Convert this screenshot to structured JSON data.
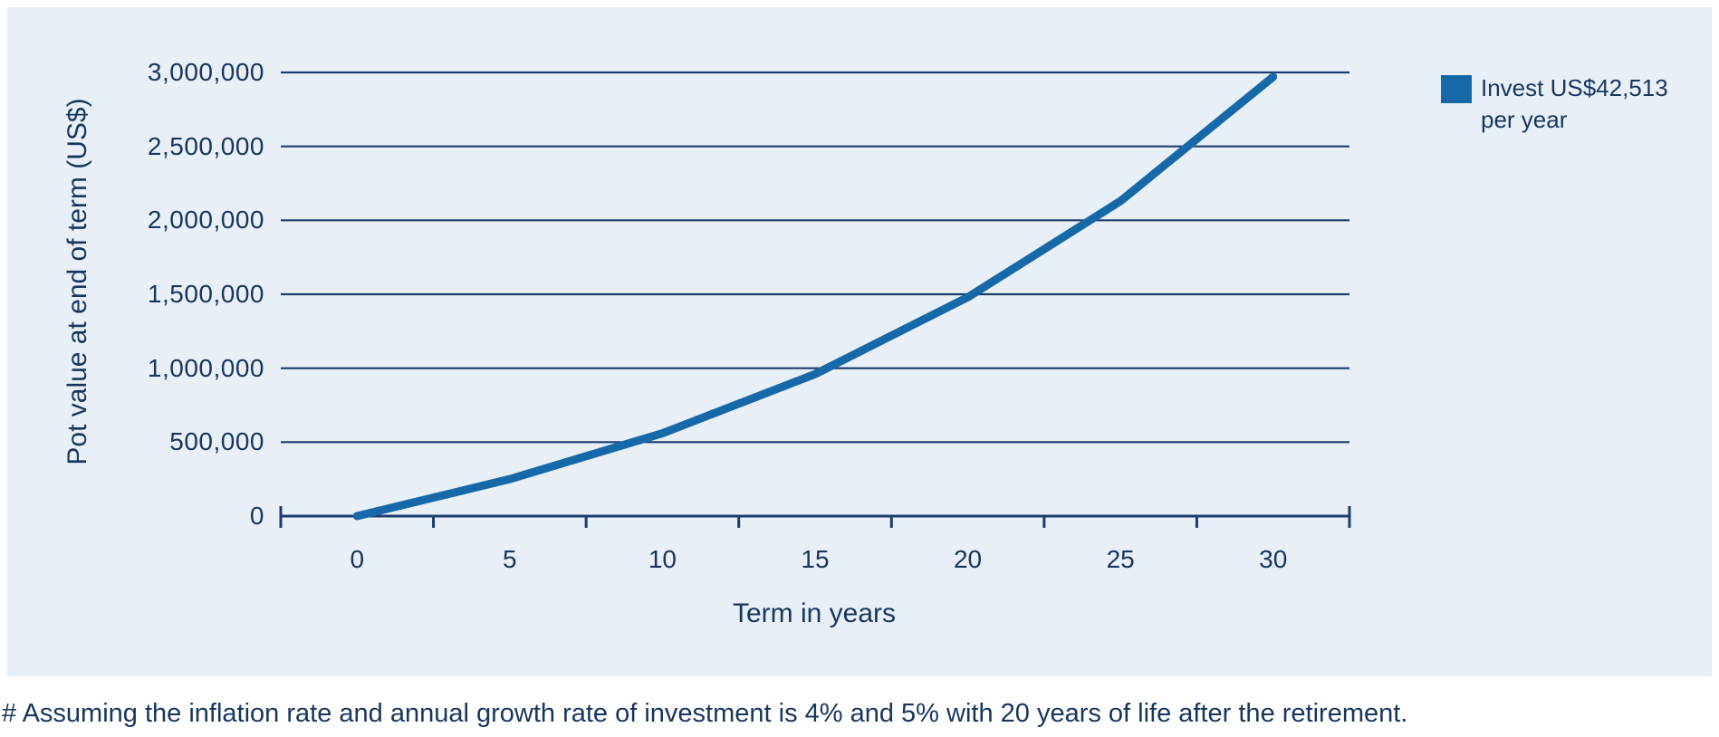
{
  "colors": {
    "accent_blue": "#1669a8",
    "navy_text": "#17365d",
    "gridline_navy": "#1c3d6e",
    "panel_bg": "#e9eff7",
    "page_bg": "#ffffff"
  },
  "chart_data": {
    "type": "line",
    "title": "",
    "categories": [
      0,
      5,
      10,
      15,
      20,
      25,
      30
    ],
    "xtick_labels": [
      "0",
      "5",
      "10",
      "15",
      "20",
      "25",
      "30"
    ],
    "series": [
      {
        "name": "Invest US$42,513 per year",
        "values": [
          0,
          250000,
          560000,
          960000,
          1480000,
          2130000,
          2970000
        ]
      }
    ],
    "xlabel": "Term in years",
    "ylabel": "Pot value at end of term (US$)",
    "ylim": [
      0,
      3000000
    ],
    "ytick_step": 500000,
    "ytick_labels": [
      "0",
      "500,000",
      "1,000,000",
      "1,500,000",
      "2,000,000",
      "2,500,000",
      "3,000,000"
    ],
    "grid": true,
    "legend_position": "top-right"
  },
  "legend": {
    "label_line1": "Invest US$42,513",
    "label_line2": "per year"
  },
  "footer": {
    "note": "# Assuming the inflation rate and annual growth rate of investment is 4% and 5% with 20 years of life after the retirement."
  }
}
